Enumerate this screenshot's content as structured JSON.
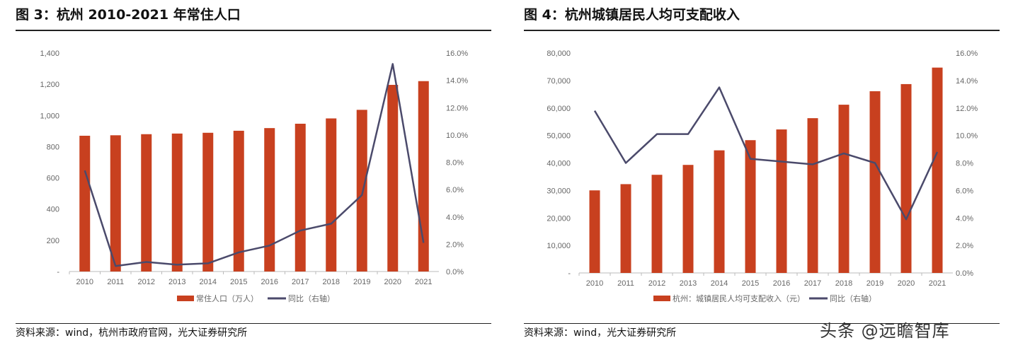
{
  "chart_data": [
    {
      "type": "bar+line",
      "title": "图 3：杭州 2010-2021 年常住人口",
      "source": "资料来源：wind，杭州市政府官网，光大证券研究所",
      "categories": [
        "2010",
        "2011",
        "2012",
        "2013",
        "2014",
        "2015",
        "2016",
        "2017",
        "2018",
        "2019",
        "2020",
        "2021"
      ],
      "series": [
        {
          "name": "常住人口（万人）",
          "type": "bar",
          "axis": "left",
          "color": "#c8401f",
          "values": [
            870,
            873,
            880,
            884,
            889,
            902,
            919,
            947,
            981,
            1036,
            1196,
            1220
          ]
        },
        {
          "name": "同比（右轴）",
          "type": "line",
          "axis": "right",
          "color": "#4b4a6b",
          "values": [
            7.4,
            0.4,
            0.7,
            0.5,
            0.6,
            1.4,
            1.9,
            3.0,
            3.5,
            5.6,
            15.2,
            2.1
          ]
        }
      ],
      "left_axis": {
        "ylim": [
          0,
          1400
        ],
        "ticks": [
          "-",
          "200",
          "400",
          "600",
          "800",
          "1,000",
          "1,200",
          "1,400"
        ]
      },
      "right_axis": {
        "ylim": [
          0,
          16
        ],
        "ticks": [
          "0.0%",
          "2.0%",
          "4.0%",
          "6.0%",
          "8.0%",
          "10.0%",
          "12.0%",
          "14.0%",
          "16.0%"
        ]
      },
      "grid": false,
      "legend": "bottom"
    },
    {
      "type": "bar+line",
      "title": "图 4：杭州城镇居民人均可支配收入",
      "source": "资料来源：wind，光大证券研究所",
      "categories": [
        "2010",
        "2011",
        "2012",
        "2013",
        "2014",
        "2015",
        "2016",
        "2017",
        "2018",
        "2019",
        "2020",
        "2021"
      ],
      "series": [
        {
          "name": "杭州：城镇居民人均可支配收入（元）",
          "type": "bar",
          "axis": "left",
          "color": "#c8401f",
          "values": [
            30035,
            32300,
            35700,
            39300,
            44600,
            48300,
            52200,
            56300,
            61200,
            66100,
            68700,
            74700
          ]
        },
        {
          "name": "同比（右轴）",
          "type": "line",
          "axis": "right",
          "color": "#4b4a6b",
          "values": [
            11.8,
            8.0,
            10.1,
            10.1,
            13.5,
            8.3,
            8.1,
            7.9,
            8.7,
            8.0,
            3.9,
            8.8
          ]
        }
      ],
      "left_axis": {
        "ylim": [
          0,
          80000
        ],
        "ticks": [
          "-",
          "10,000",
          "20,000",
          "30,000",
          "40,000",
          "50,000",
          "60,000",
          "70,000",
          "80,000"
        ]
      },
      "right_axis": {
        "ylim": [
          0,
          16
        ],
        "ticks": [
          "0.0%",
          "2.0%",
          "4.0%",
          "6.0%",
          "8.0%",
          "10.0%",
          "12.0%",
          "14.0%",
          "16.0%"
        ]
      },
      "grid": false,
      "legend": "bottom"
    }
  ],
  "watermark": "头条 @远瞻智库"
}
